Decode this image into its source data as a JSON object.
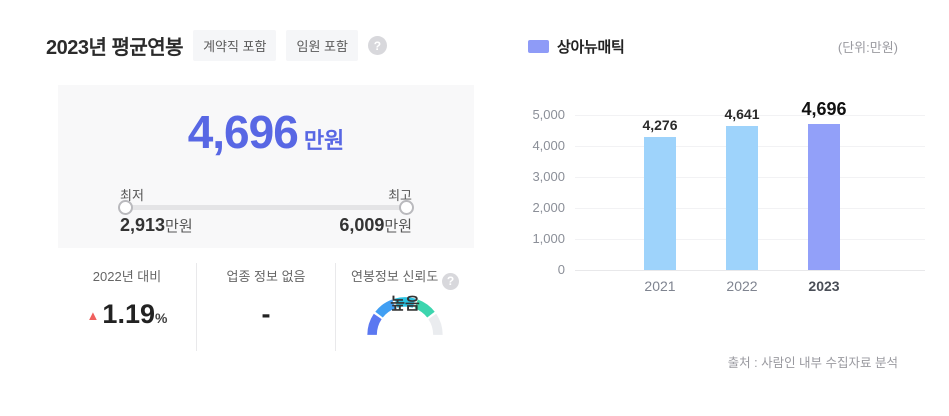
{
  "left": {
    "title": "2023년 평균연봉",
    "tags": [
      "계약직 포함",
      "임원 포함"
    ],
    "help_icon_glyph": "?",
    "summary": {
      "value": "4,696",
      "unit": "만원",
      "value_color": "#5867e4",
      "min_label": "최저",
      "max_label": "최고",
      "min_value": "2,913",
      "min_unit": "만원",
      "max_value": "6,009",
      "max_unit": "만원"
    },
    "stats": {
      "compare": {
        "label": "2022년 대비",
        "value": "1.19",
        "suffix": "%",
        "direction": "up",
        "arrow_glyph": "▲",
        "arrow_color": "#f0605e"
      },
      "industry": {
        "label": "업종 정보 없음",
        "value": "-"
      },
      "reliability": {
        "label": "연봉정보 신뢰도",
        "gauge_label": "높음"
      }
    },
    "gauge": {
      "segments": [
        "#5b78f1",
        "#419ff3",
        "#2ac2e2",
        "#3cd5ae",
        "#eaecef"
      ]
    }
  },
  "chart_data": {
    "type": "bar",
    "title": "",
    "legend": "상아뉴매틱",
    "legend_swatch_color": "#8e9bf7",
    "unit_label": "(단위:만원)",
    "categories": [
      "2021",
      "2022",
      "2023"
    ],
    "series": [
      {
        "name": "상아뉴매틱",
        "values": [
          4276,
          4641,
          4696
        ]
      }
    ],
    "value_labels": [
      "4,276",
      "4,641",
      "4,696"
    ],
    "bar_colors": [
      "#9ed3fb",
      "#9ed3fb",
      "#92a0f9"
    ],
    "highlight_index": 2,
    "ylim": [
      0,
      5000
    ],
    "yticks": [
      0,
      1000,
      2000,
      3000,
      4000,
      5000
    ],
    "ytick_labels": [
      "0",
      "1,000",
      "2,000",
      "3,000",
      "4,000",
      "5,000"
    ],
    "grid": true,
    "legend_position": "top-left"
  },
  "source": "출처 : 사람인 내부 수집자료 분석"
}
